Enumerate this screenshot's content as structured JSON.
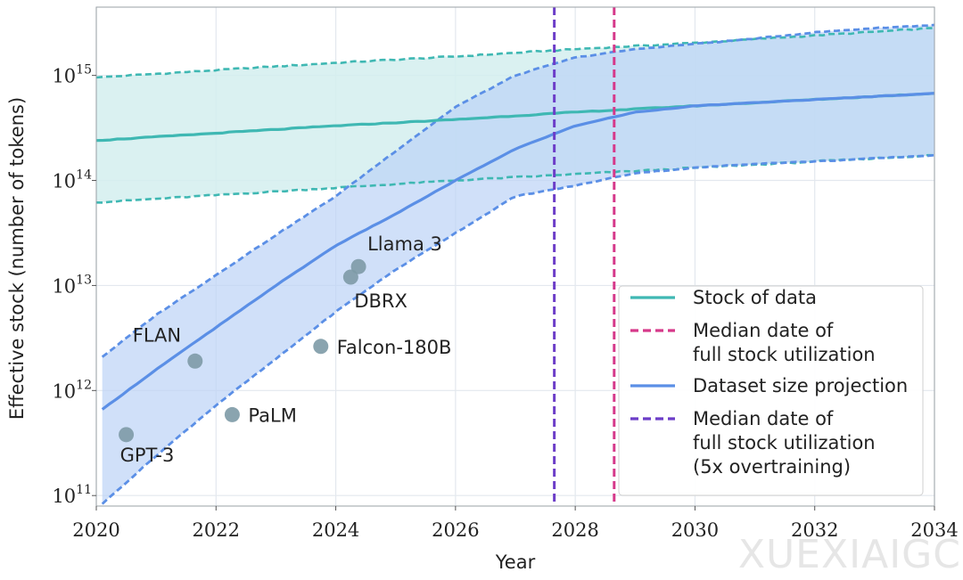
{
  "watermark": "XUEXIAIGC",
  "chart_data": {
    "type": "line",
    "xlabel": "Year",
    "ylabel": "Effective stock (number of tokens)",
    "xlim": [
      2020,
      2034
    ],
    "ylim_log10": [
      10.9,
      15.65
    ],
    "yscale": "log",
    "grid": true,
    "x_ticks": [
      2020,
      2022,
      2024,
      2026,
      2028,
      2030,
      2032,
      2034
    ],
    "y_ticks": [
      {
        "base": "10",
        "exp": "11",
        "log10": 11
      },
      {
        "base": "10",
        "exp": "12",
        "log10": 12
      },
      {
        "base": "10",
        "exp": "13",
        "log10": 13
      },
      {
        "base": "10",
        "exp": "14",
        "log10": 14
      },
      {
        "base": "10",
        "exp": "15",
        "log10": 15
      }
    ],
    "colors": {
      "stock": "#3fb8b3",
      "stock_fill": "#d4efee",
      "projection": "#5b8fe6",
      "projection_fill": "#bcd3f6",
      "median_line": "#d6398a",
      "median_5x_line": "#6c3dc8",
      "models": "#7d9aa6"
    },
    "series": [
      {
        "name": "Stock of data",
        "style": "solid",
        "x": [
          2020,
          2022,
          2024,
          2026,
          2028,
          2030,
          2032,
          2034
        ],
        "log10_y": [
          14.38,
          14.45,
          14.52,
          14.58,
          14.65,
          14.71,
          14.77,
          14.83
        ],
        "band_lower_log10": [
          13.79,
          13.86,
          13.93,
          14.0,
          14.06,
          14.12,
          14.18,
          14.24
        ],
        "band_upper_log10": [
          14.98,
          15.05,
          15.12,
          15.18,
          15.25,
          15.31,
          15.38,
          15.45
        ]
      },
      {
        "name": "Dataset size projection",
        "style": "solid",
        "x": [
          2020.1,
          2021,
          2022,
          2023,
          2024,
          2025,
          2026,
          2027,
          2028,
          2029,
          2030,
          2031,
          2032,
          2033,
          2034
        ],
        "log10_y": [
          11.82,
          12.2,
          12.6,
          13.0,
          13.38,
          13.68,
          14.0,
          14.3,
          14.52,
          14.65,
          14.71,
          14.74,
          14.77,
          14.8,
          14.83
        ],
        "band_lower_log10": [
          10.92,
          11.38,
          11.86,
          12.3,
          12.75,
          13.15,
          13.5,
          13.85,
          13.95,
          14.07,
          14.12,
          14.16,
          14.18,
          14.21,
          14.24
        ],
        "band_upper_log10": [
          12.32,
          12.72,
          13.1,
          13.48,
          13.85,
          14.28,
          14.7,
          15.0,
          15.17,
          15.25,
          15.3,
          15.35,
          15.41,
          15.45,
          15.48
        ]
      }
    ],
    "vertical_lines": [
      {
        "name": "Median date of full stock utilization",
        "x": 2028.65
      },
      {
        "name": "Median date of full stock utilization (5x overtraining)",
        "x": 2027.65
      }
    ],
    "models": [
      {
        "label": "GPT-3",
        "x": 2020.5,
        "log10_y": 11.58,
        "label_pos": "below"
      },
      {
        "label": "FLAN",
        "x": 2021.65,
        "log10_y": 12.28,
        "label_pos": "above-left"
      },
      {
        "label": "PaLM",
        "x": 2022.27,
        "log10_y": 11.77,
        "label_pos": "right"
      },
      {
        "label": "Falcon-180B",
        "x": 2023.75,
        "log10_y": 12.42,
        "label_pos": "right"
      },
      {
        "label": "DBRX",
        "x": 2024.25,
        "log10_y": 13.08,
        "label_pos": "below-right"
      },
      {
        "label": "Llama 3",
        "x": 2024.38,
        "log10_y": 13.18,
        "label_pos": "above-right"
      }
    ],
    "legend": {
      "placement": "bottom-right",
      "items": [
        {
          "lines": [
            "Stock of data"
          ],
          "key": "stock",
          "style": "solid"
        },
        {
          "lines": [
            "Median date of",
            "full stock utilization"
          ],
          "key": "median_line",
          "style": "dashed"
        },
        {
          "lines": [
            "Dataset size projection"
          ],
          "key": "projection",
          "style": "solid"
        },
        {
          "lines": [
            "Median date of",
            "full stock utilization",
            "(5x overtraining)"
          ],
          "key": "median_5x_line",
          "style": "dashed"
        }
      ]
    }
  }
}
